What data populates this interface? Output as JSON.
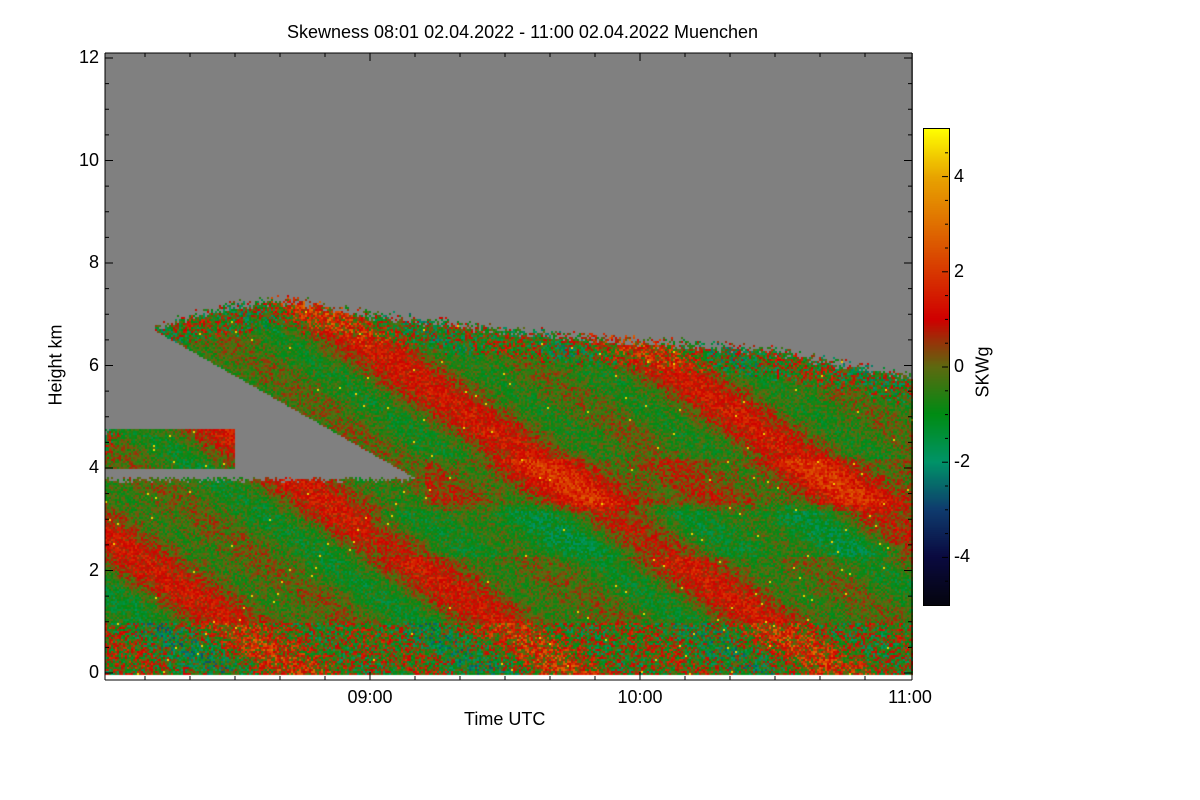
{
  "chart_data": {
    "type": "heatmap",
    "title": "Skewness   08:01 02.04.2022 - 11:00 02.04.2022 Muenchen",
    "xlabel": "Time UTC",
    "ylabel": "Height km",
    "xlim": [
      "08:01",
      "11:00"
    ],
    "x_hours_range": [
      8.0167,
      11.0
    ],
    "ylim": [
      0,
      12
    ],
    "xticks": [
      "09:00",
      "10:00",
      "11:00"
    ],
    "xtick_hours": [
      9,
      10,
      11
    ],
    "yticks": [
      "0",
      "2",
      "4",
      "6",
      "8",
      "10",
      "12"
    ],
    "ytick_values": [
      0,
      2,
      4,
      6,
      8,
      10,
      12
    ],
    "colorbar": {
      "label": "SKWg",
      "range": [
        -5,
        5
      ],
      "ticks": [
        "4",
        "2",
        "0",
        "-2",
        "-4"
      ],
      "tick_values": [
        4,
        2,
        0,
        -2,
        -4
      ],
      "colormap": [
        {
          "v": -5,
          "c": "#05050f"
        },
        {
          "v": -4,
          "c": "#0a0a40"
        },
        {
          "v": -3,
          "c": "#0f3c6e"
        },
        {
          "v": -2,
          "c": "#009468"
        },
        {
          "v": -1,
          "c": "#008c14"
        },
        {
          "v": 0,
          "c": "#5e6a10"
        },
        {
          "v": 0.6,
          "c": "#a02c08"
        },
        {
          "v": 1,
          "c": "#d00000"
        },
        {
          "v": 2,
          "c": "#d83800"
        },
        {
          "v": 3,
          "c": "#e07000"
        },
        {
          "v": 4,
          "c": "#e8a400"
        },
        {
          "v": 5,
          "c": "#ffff00"
        }
      ]
    },
    "no_data_color": "#808080",
    "cloud_top_km": {
      "hours": [
        8.02,
        8.2,
        8.5,
        8.7,
        9.0,
        9.5,
        10.0,
        10.5,
        11.0
      ],
      "height": [
        4.7,
        6.8,
        7.2,
        7.3,
        7.0,
        6.7,
        6.5,
        6.3,
        5.8
      ]
    },
    "lower_layer_top_km": 3.8,
    "clear_gap_base_km": {
      "hours": [
        8.2,
        9.17
      ],
      "height": [
        6.7,
        3.8
      ]
    }
  }
}
